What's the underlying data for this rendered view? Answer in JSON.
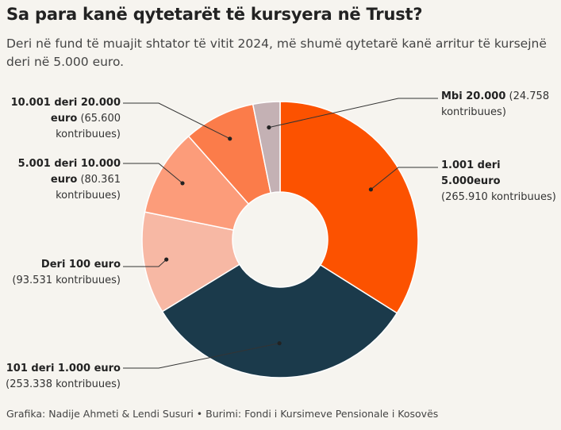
{
  "title": "Sa para kanë qytetarët të kursyera në Trust?",
  "subtitle": "Deri në fund të muajit shtator të vitit 2024, më shumë qytetarë kanë arritur të kursejnë deri në 5.000 euro.",
  "footer": "Grafika: Nadije Ahmeti & Lendi Susuri  • Burimi: Fondi i Kursimeve Pensionale i Kosovës",
  "chart_data": {
    "type": "pie",
    "style": "donut",
    "slices": [
      {
        "label": "1.001 deri 5.000euro",
        "value": 265910,
        "value_text": "(265.910 kontribuues)",
        "color": "#fc5200"
      },
      {
        "label": "101 deri 1.000 euro",
        "value": 253338,
        "value_text": "(253.338 kontribuues)",
        "color": "#1b3a4b"
      },
      {
        "label": "Deri 100 euro",
        "value": 93531,
        "value_text": "(93.531 kontribuues)",
        "color": "#f7b8a4"
      },
      {
        "label": "5.001 deri 10.000 euro",
        "value": 80361,
        "value_text": "(80.361 kontribuues)",
        "color": "#fc9c7a"
      },
      {
        "label": "10.001 deri 20.000 euro",
        "value": 65600,
        "value_text": "(65.600 kontribuues)",
        "color": "#fb7c4a"
      },
      {
        "label": "Mbi 20.000",
        "value": 24758,
        "value_text": "(24.758 kontribuues)",
        "color": "#c4b1b4"
      }
    ]
  }
}
